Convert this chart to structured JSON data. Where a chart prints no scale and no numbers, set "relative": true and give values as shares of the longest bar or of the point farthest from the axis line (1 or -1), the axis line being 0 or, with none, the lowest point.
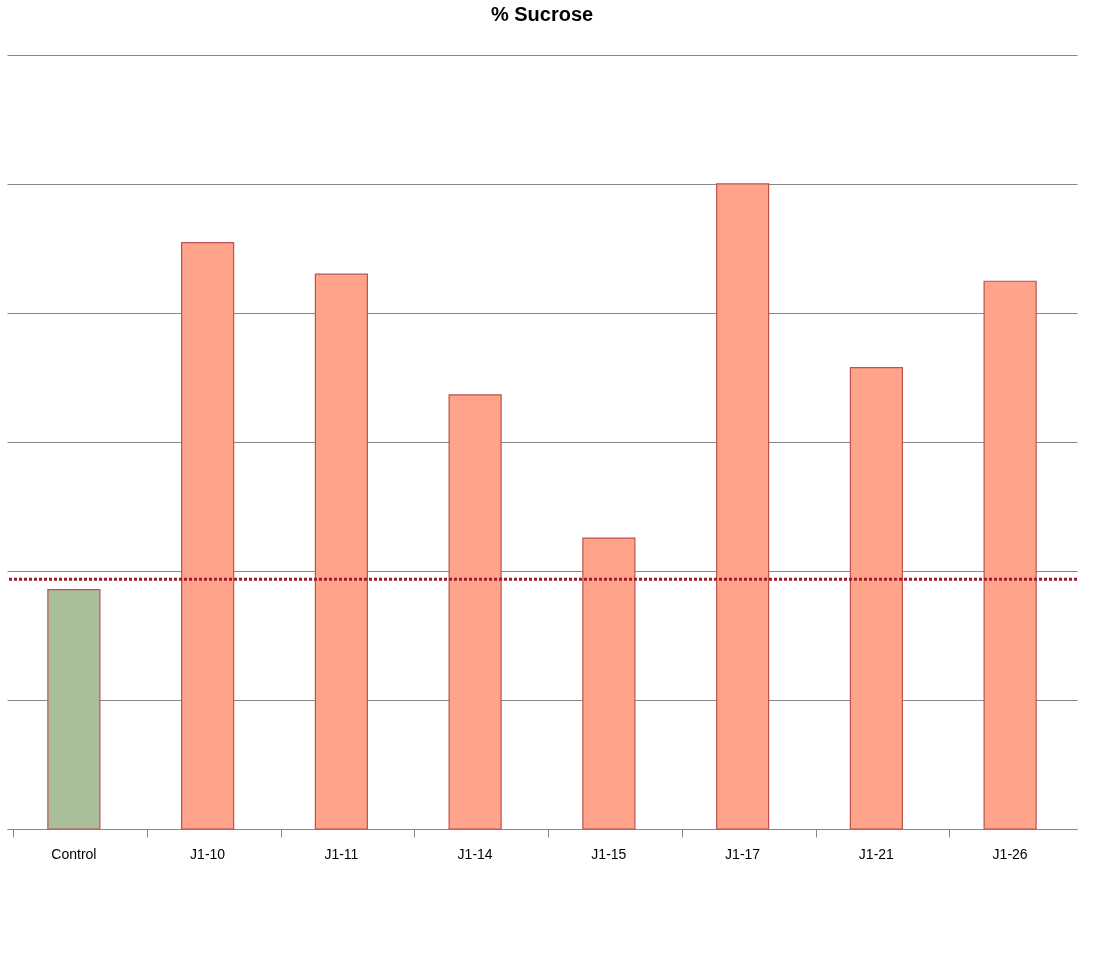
{
  "chart_data": {
    "type": "bar",
    "title": "% Sucrose",
    "relative": true,
    "categories": [
      "Control",
      "J1-10",
      "J1-11",
      "J1-14",
      "J1-15",
      "J1-17",
      "J1-21",
      "J1-26"
    ],
    "values": [
      0.371,
      0.909,
      0.86,
      0.673,
      0.451,
      1,
      0.715,
      0.849
    ],
    "colors": [
      "#a9bf9c",
      "#ffa38a",
      "#ffa38a",
      "#ffa38a",
      "#ffa38a",
      "#ffa38a",
      "#ffa38a",
      "#ffa38a"
    ],
    "ref_lines": [
      {
        "axis": "y",
        "value": 0.387,
        "color": "#a01c2c",
        "line_style": "dotted"
      }
    ],
    "grid": "y"
  }
}
